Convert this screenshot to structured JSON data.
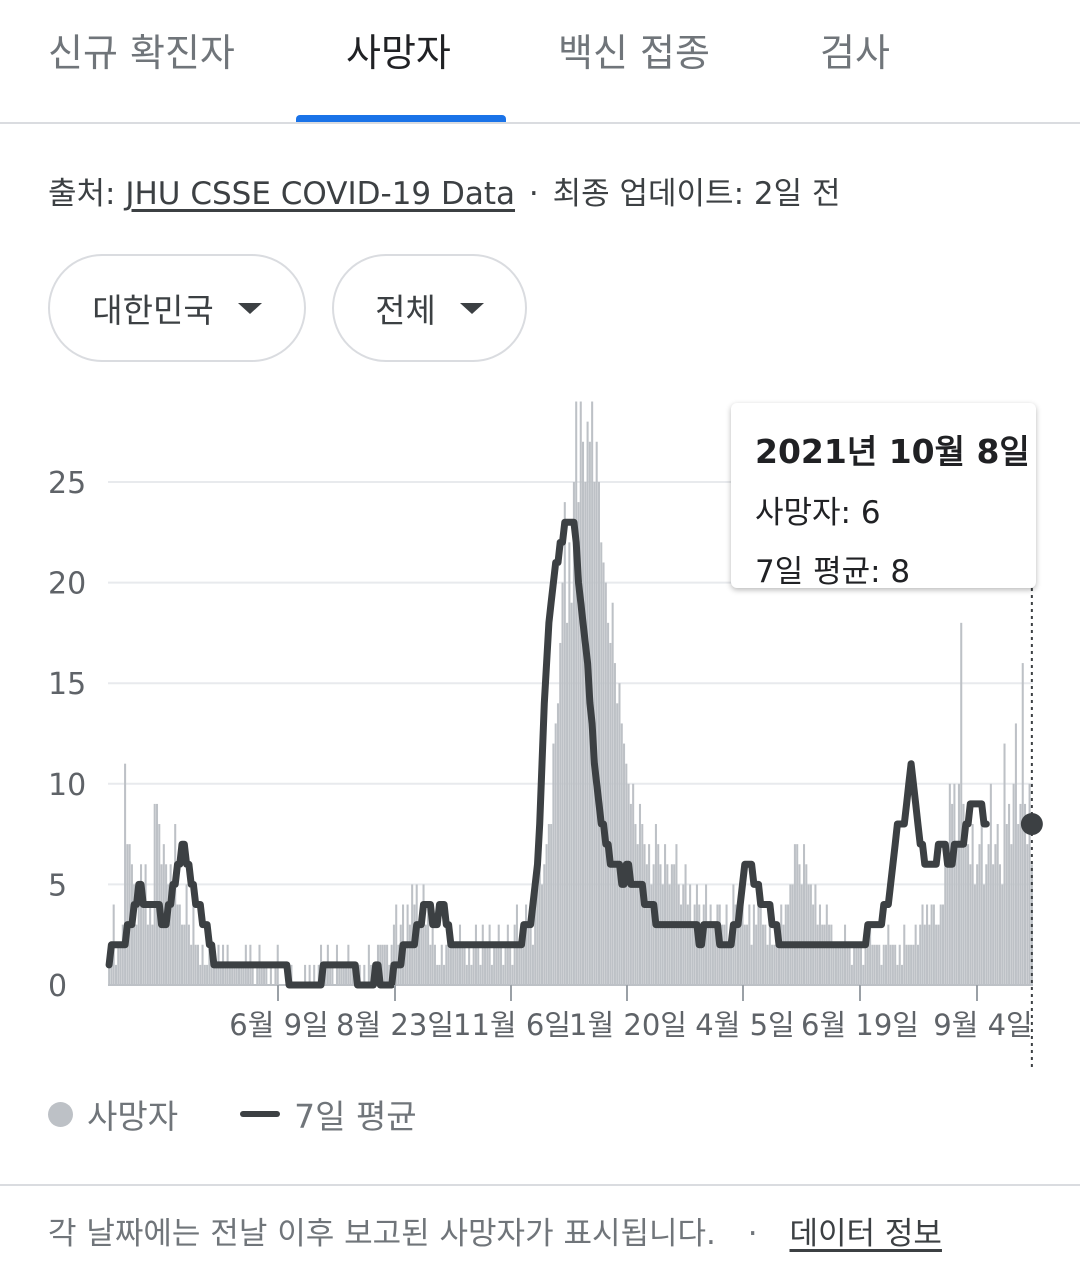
{
  "tabs": [
    {
      "label": "신규 확진자",
      "active": false
    },
    {
      "label": "사망자",
      "active": true
    },
    {
      "label": "백신 접종",
      "active": false
    },
    {
      "label": "검사",
      "active": false
    }
  ],
  "source": {
    "prefix": "출처:",
    "link_text": "JHU CSSE COVID-19 Data",
    "separator": "·",
    "updated": "최종 업데이트: 2일 전"
  },
  "filters": {
    "region": "대한민국",
    "scope": "전체"
  },
  "tooltip": {
    "date": "2021년 10월 8일",
    "deaths_line": "사망자: 6",
    "avg_line": "7일 평균: 8"
  },
  "legend": {
    "deaths": "사망자",
    "average": "7일 평균"
  },
  "footnote": {
    "text": "각 날짜에는 전날 이후 보고된 사망자가 표시됩니다.",
    "separator": "·",
    "link_text": "데이터 정보"
  },
  "colors": {
    "bars": "#bdc1c6",
    "avg_line": "#3c4043",
    "grid": "#e8eaed",
    "accent": "#1a73e8"
  },
  "chart_data": {
    "type": "bar",
    "y_ticks": [
      0,
      5,
      10,
      15,
      20,
      25
    ],
    "ylim": [
      0,
      29
    ],
    "x_tick_labels": [
      "6월 9일",
      "8월 23일",
      "11월 6일",
      "1월 20일",
      "4월 5일",
      "6월 19일",
      "9월 4일"
    ],
    "series": [
      {
        "name": "사망자",
        "kind": "bar",
        "values": [
          2,
          2,
          4,
          1,
          2,
          2,
          3,
          11,
          7,
          7,
          6,
          5,
          3,
          4,
          6,
          5,
          6,
          3,
          4,
          3,
          9,
          9,
          8,
          6,
          7,
          6,
          5,
          6,
          4,
          8,
          4,
          4,
          3,
          3,
          5,
          3,
          2,
          4,
          2,
          2,
          1,
          2,
          1,
          1,
          2,
          1,
          1,
          1,
          2,
          1,
          2,
          1,
          2,
          1,
          1,
          1,
          1,
          1,
          1,
          1,
          2,
          1,
          2,
          1,
          0,
          1,
          2,
          1,
          1,
          1,
          0,
          1,
          0,
          1,
          2,
          0,
          0,
          0,
          0,
          0,
          1,
          0,
          0,
          0,
          0,
          0,
          1,
          0,
          1,
          0,
          1,
          0,
          1,
          2,
          1,
          1,
          2,
          1,
          1,
          0,
          2,
          1,
          1,
          1,
          1,
          2,
          1,
          1,
          1,
          0,
          1,
          0,
          1,
          0,
          2,
          1,
          0,
          0,
          2,
          2,
          2,
          2,
          2,
          1,
          2,
          3,
          4,
          2,
          3,
          4,
          2,
          4,
          3,
          5,
          4,
          5,
          3,
          4,
          5,
          3,
          4,
          2,
          3,
          2,
          1,
          1,
          2,
          1,
          2,
          2,
          2,
          2,
          2,
          2,
          3,
          2,
          2,
          1,
          2,
          1,
          2,
          3,
          2,
          1,
          3,
          2,
          2,
          3,
          1,
          2,
          2,
          3,
          2,
          1,
          2,
          3,
          2,
          1,
          3,
          4,
          2,
          3,
          3,
          4,
          3,
          4,
          2,
          6,
          5,
          6,
          5,
          6,
          7,
          8,
          8,
          12,
          13,
          14,
          17,
          20,
          24,
          18,
          22,
          19,
          25,
          29,
          24,
          29,
          27,
          25,
          28,
          27,
          29,
          25,
          27,
          25,
          22,
          21,
          20,
          18,
          17,
          19,
          16,
          14,
          15,
          13,
          12,
          11,
          10,
          9,
          10,
          8,
          7,
          9,
          8,
          7,
          6,
          7,
          5,
          6,
          8,
          7,
          6,
          5,
          7,
          6,
          5,
          6,
          6,
          7,
          5,
          4,
          5,
          6,
          4,
          5,
          3,
          4,
          5,
          4,
          3,
          4,
          5,
          3,
          4,
          3,
          3,
          4,
          4,
          3,
          3,
          4,
          2,
          3,
          5,
          4,
          3,
          3,
          4,
          3,
          3,
          4,
          2,
          4,
          3,
          4,
          4,
          3,
          3,
          2,
          3,
          2,
          2,
          3,
          3,
          4,
          3,
          4,
          4,
          5,
          5,
          7,
          7,
          6,
          5,
          7,
          6,
          5,
          5,
          4,
          5,
          3,
          4,
          3,
          3,
          4,
          3,
          3,
          2,
          2,
          2,
          2,
          2,
          3,
          2,
          2,
          1,
          2,
          2,
          2,
          2,
          1,
          2,
          2,
          3,
          2,
          2,
          2,
          2,
          1,
          2,
          2,
          3,
          2,
          2,
          2,
          1,
          2,
          1,
          3,
          2,
          2,
          2,
          2,
          3,
          2,
          3,
          4,
          3,
          4,
          3,
          4,
          4,
          3,
          3,
          4,
          4,
          6,
          6,
          10,
          9,
          10,
          7,
          10,
          18,
          9,
          8,
          7,
          6,
          8,
          5,
          6,
          7,
          8,
          5,
          6,
          7,
          10,
          6,
          7,
          8,
          6,
          5,
          12,
          8,
          9,
          7,
          10,
          13,
          8,
          9,
          16,
          9,
          7,
          10,
          6
        ]
      },
      {
        "name": "7일 평균",
        "kind": "line",
        "values": [
          1,
          2,
          2,
          2,
          2,
          2,
          2,
          2,
          3,
          3,
          3,
          4,
          4,
          5,
          5,
          4,
          4,
          4,
          4,
          4,
          4,
          4,
          4,
          3,
          3,
          3,
          4,
          4,
          5,
          5,
          6,
          6,
          7,
          7,
          6,
          6,
          5,
          5,
          4,
          4,
          4,
          3,
          3,
          3,
          2,
          2,
          1,
          1,
          1,
          1,
          1,
          1,
          1,
          1,
          1,
          1,
          1,
          1,
          1,
          1,
          1,
          1,
          1,
          1,
          1,
          1,
          1,
          1,
          1,
          1,
          1,
          1,
          1,
          1,
          1,
          1,
          1,
          1,
          1,
          0,
          0,
          0,
          0,
          0,
          0,
          0,
          0,
          0,
          0,
          0,
          0,
          0,
          0,
          0,
          1,
          1,
          1,
          1,
          1,
          1,
          1,
          1,
          1,
          1,
          1,
          1,
          1,
          1,
          1,
          0,
          0,
          0,
          0,
          0,
          0,
          0,
          0,
          1,
          1,
          0,
          0,
          0,
          0,
          0,
          0,
          1,
          1,
          1,
          1,
          2,
          2,
          2,
          2,
          2,
          2,
          3,
          3,
          3,
          4,
          4,
          4,
          4,
          3,
          3,
          3,
          4,
          4,
          4,
          3,
          3,
          2,
          2,
          2,
          2,
          2,
          2,
          2,
          2,
          2,
          2,
          2,
          2,
          2,
          2,
          2,
          2,
          2,
          2,
          2,
          2,
          2,
          2,
          2,
          2,
          2,
          2,
          2,
          2,
          2,
          2,
          2,
          2,
          3,
          3,
          3,
          3,
          4,
          5,
          6,
          8,
          11,
          14,
          16,
          18,
          19,
          20,
          21,
          21,
          22,
          22,
          23,
          23,
          23,
          23,
          23,
          22,
          20,
          19,
          18,
          17,
          16,
          14,
          13,
          11,
          10,
          9,
          8,
          8,
          7,
          7,
          6,
          6,
          6,
          6,
          6,
          5,
          5,
          6,
          6,
          5,
          5,
          5,
          5,
          5,
          5,
          4,
          4,
          4,
          4,
          4,
          3,
          3,
          3,
          3,
          3,
          3,
          3,
          3,
          3,
          3,
          3,
          3,
          3,
          3,
          3,
          3,
          3,
          3,
          3,
          2,
          2,
          3,
          3,
          3,
          3,
          3,
          3,
          3,
          2,
          2,
          2,
          2,
          2,
          2,
          3,
          3,
          3,
          4,
          5,
          6,
          6,
          6,
          6,
          5,
          5,
          5,
          4,
          4,
          4,
          4,
          4,
          3,
          3,
          3,
          2,
          2,
          2,
          2,
          2,
          2,
          2,
          2,
          2,
          2,
          2,
          2,
          2,
          2,
          2,
          2,
          2,
          2,
          2,
          2,
          2,
          2,
          2,
          2,
          2,
          2,
          2,
          2,
          2,
          2,
          2,
          2,
          2,
          2,
          2,
          2,
          2,
          2,
          2,
          3,
          3,
          3,
          3,
          3,
          3,
          3,
          4,
          4,
          4,
          5,
          6,
          7,
          8,
          8,
          8,
          8,
          9,
          10,
          11,
          10,
          9,
          8,
          7,
          7,
          6,
          6,
          6,
          6,
          6,
          6,
          7,
          7,
          7,
          7,
          6,
          6,
          6,
          7,
          7,
          7,
          7,
          7,
          8,
          8,
          9,
          9,
          9,
          9,
          9,
          9,
          8,
          8
        ]
      }
    ],
    "highlight": {
      "date": "2021년 10월 8일",
      "deaths": 6,
      "avg": 8
    }
  }
}
